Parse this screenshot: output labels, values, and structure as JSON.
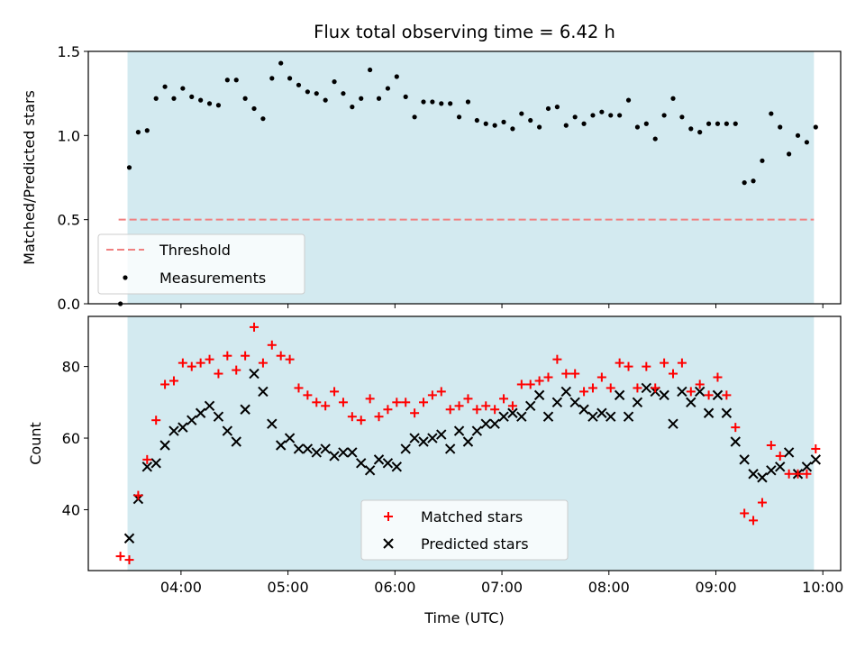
{
  "chart_data": [
    {
      "type": "scatter",
      "title": "Flux total observing time = 6.42 h",
      "xlabel": "",
      "ylabel": "Matched/Predicted stars",
      "ylim": [
        0,
        1.5
      ],
      "yticks": [
        0.0,
        0.5,
        1.0,
        1.5
      ],
      "ytick_labels": [
        "0.0",
        "0.5",
        "1.0",
        "1.5"
      ],
      "xlim": [
        "03:08",
        "10:10"
      ],
      "xticks": [
        "04:00",
        "05:00",
        "06:00",
        "07:00",
        "08:00",
        "09:00",
        "10:00"
      ],
      "grid": false,
      "legend": "lower-left",
      "shaded_span": {
        "x_start": "03:30",
        "x_end": "09:55",
        "color": "#d3eaf0"
      },
      "threshold": {
        "name": "Threshold",
        "value": 0.5,
        "x_start": "03:25",
        "x_end": "09:55",
        "color": "#f08080",
        "style": "dashed"
      },
      "series": [
        {
          "name": "Measurements",
          "color": "#000000",
          "marker": "dot",
          "x": [
            "03:26",
            "03:31",
            "03:36",
            "03:41",
            "03:46",
            "03:51",
            "03:56",
            "04:01",
            "04:06",
            "04:11",
            "04:16",
            "04:21",
            "04:26",
            "04:31",
            "04:36",
            "04:41",
            "04:46",
            "04:51",
            "04:56",
            "05:01",
            "05:06",
            "05:11",
            "05:16",
            "05:21",
            "05:26",
            "05:31",
            "05:36",
            "05:41",
            "05:46",
            "05:51",
            "05:56",
            "06:01",
            "06:06",
            "06:11",
            "06:16",
            "06:21",
            "06:26",
            "06:31",
            "06:36",
            "06:41",
            "06:46",
            "06:51",
            "06:56",
            "07:01",
            "07:06",
            "07:11",
            "07:16",
            "07:21",
            "07:26",
            "07:31",
            "07:36",
            "07:41",
            "07:46",
            "07:51",
            "07:56",
            "08:01",
            "08:06",
            "08:11",
            "08:16",
            "08:21",
            "08:26",
            "08:31",
            "08:36",
            "08:41",
            "08:46",
            "08:51",
            "08:56",
            "09:01",
            "09:06",
            "09:11",
            "09:16",
            "09:21",
            "09:26",
            "09:31",
            "09:36",
            "09:41",
            "09:46",
            "09:51",
            "09:56"
          ],
          "y": [
            0.0,
            0.81,
            1.02,
            1.03,
            1.22,
            1.29,
            1.22,
            1.28,
            1.23,
            1.21,
            1.19,
            1.18,
            1.33,
            1.33,
            1.22,
            1.16,
            1.1,
            1.34,
            1.43,
            1.34,
            1.3,
            1.26,
            1.25,
            1.21,
            1.32,
            1.25,
            1.17,
            1.22,
            1.39,
            1.22,
            1.28,
            1.35,
            1.23,
            1.11,
            1.2,
            1.2,
            1.19,
            1.19,
            1.11,
            1.2,
            1.09,
            1.07,
            1.06,
            1.08,
            1.04,
            1.13,
            1.09,
            1.05,
            1.16,
            1.17,
            1.06,
            1.11,
            1.07,
            1.12,
            1.14,
            1.12,
            1.12,
            1.21,
            1.05,
            1.07,
            0.98,
            1.12,
            1.22,
            1.11,
            1.04,
            1.02,
            1.07,
            1.07,
            1.07,
            1.07,
            0.72,
            0.73,
            0.85,
            1.13,
            1.05,
            0.89,
            1.0,
            0.96,
            1.05
          ]
        }
      ]
    },
    {
      "type": "scatter",
      "title": "",
      "xlabel": "Time (UTC)",
      "ylabel": "Count",
      "ylim": [
        23,
        94
      ],
      "yticks": [
        40,
        60,
        80
      ],
      "ytick_labels": [
        "40",
        "60",
        "80"
      ],
      "xlim": [
        "03:08",
        "10:10"
      ],
      "xticks": [
        "04:00",
        "05:00",
        "06:00",
        "07:00",
        "08:00",
        "09:00",
        "10:00"
      ],
      "xtick_labels": [
        "04:00",
        "05:00",
        "06:00",
        "07:00",
        "08:00",
        "09:00",
        "10:00"
      ],
      "grid": false,
      "legend": "lower-center",
      "shaded_span": {
        "x_start": "03:30",
        "x_end": "09:55",
        "color": "#d3eaf0"
      },
      "series": [
        {
          "name": "Matched stars",
          "color": "#ff0000",
          "marker": "plus",
          "x": [
            "03:26",
            "03:31",
            "03:36",
            "03:41",
            "03:46",
            "03:51",
            "03:56",
            "04:01",
            "04:06",
            "04:11",
            "04:16",
            "04:21",
            "04:26",
            "04:31",
            "04:36",
            "04:41",
            "04:46",
            "04:51",
            "04:56",
            "05:01",
            "05:06",
            "05:11",
            "05:16",
            "05:21",
            "05:26",
            "05:31",
            "05:36",
            "05:41",
            "05:46",
            "05:51",
            "05:56",
            "06:01",
            "06:06",
            "06:11",
            "06:16",
            "06:21",
            "06:26",
            "06:31",
            "06:36",
            "06:41",
            "06:46",
            "06:51",
            "06:56",
            "07:01",
            "07:06",
            "07:11",
            "07:16",
            "07:21",
            "07:26",
            "07:31",
            "07:36",
            "07:41",
            "07:46",
            "07:51",
            "07:56",
            "08:01",
            "08:06",
            "08:11",
            "08:16",
            "08:21",
            "08:26",
            "08:31",
            "08:36",
            "08:41",
            "08:46",
            "08:51",
            "08:56",
            "09:01",
            "09:06",
            "09:11",
            "09:16",
            "09:21",
            "09:26",
            "09:31",
            "09:36",
            "09:41",
            "09:46",
            "09:51",
            "09:56"
          ],
          "y": [
            27,
            26,
            44,
            54,
            65,
            75,
            76,
            81,
            80,
            81,
            82,
            78,
            83,
            79,
            83,
            91,
            81,
            86,
            83,
            82,
            74,
            72,
            70,
            69,
            73,
            70,
            66,
            65,
            71,
            66,
            68,
            70,
            70,
            67,
            70,
            72,
            73,
            68,
            69,
            71,
            68,
            69,
            68,
            71,
            69,
            75,
            75,
            76,
            77,
            82,
            78,
            78,
            73,
            74,
            77,
            74,
            81,
            80,
            74,
            80,
            74,
            81,
            78,
            81,
            73,
            75,
            72,
            77,
            72,
            63,
            39,
            37,
            42,
            58,
            55,
            50,
            50,
            50,
            57
          ]
        },
        {
          "name": "Predicted stars",
          "color": "#000000",
          "marker": "x",
          "x": [
            "03:31",
            "03:36",
            "03:41",
            "03:46",
            "03:51",
            "03:56",
            "04:01",
            "04:06",
            "04:11",
            "04:16",
            "04:21",
            "04:26",
            "04:31",
            "04:36",
            "04:41",
            "04:46",
            "04:51",
            "04:56",
            "05:01",
            "05:06",
            "05:11",
            "05:16",
            "05:21",
            "05:26",
            "05:31",
            "05:36",
            "05:41",
            "05:46",
            "05:51",
            "05:56",
            "06:01",
            "06:06",
            "06:11",
            "06:16",
            "06:21",
            "06:26",
            "06:31",
            "06:36",
            "06:41",
            "06:46",
            "06:51",
            "06:56",
            "07:01",
            "07:06",
            "07:11",
            "07:16",
            "07:21",
            "07:26",
            "07:31",
            "07:36",
            "07:41",
            "07:46",
            "07:51",
            "07:56",
            "08:01",
            "08:06",
            "08:11",
            "08:16",
            "08:21",
            "08:26",
            "08:31",
            "08:36",
            "08:41",
            "08:46",
            "08:51",
            "08:56",
            "09:01",
            "09:06",
            "09:11",
            "09:16",
            "09:21",
            "09:26",
            "09:31",
            "09:36",
            "09:41",
            "09:46",
            "09:51",
            "09:56"
          ],
          "y": [
            32,
            43,
            52,
            53,
            58,
            62,
            63,
            65,
            67,
            69,
            66,
            62,
            59,
            68,
            78,
            73,
            64,
            58,
            60,
            57,
            57,
            56,
            57,
            55,
            56,
            56,
            53,
            51,
            54,
            53,
            52,
            57,
            60,
            59,
            60,
            61,
            57,
            62,
            59,
            62,
            64,
            64,
            66,
            67,
            66,
            69,
            72,
            66,
            70,
            73,
            70,
            68,
            66,
            67,
            66,
            72,
            66,
            70,
            74,
            73,
            72,
            64,
            73,
            70,
            73,
            67,
            72,
            67,
            59,
            54,
            50,
            49,
            51,
            52,
            56,
            50,
            52,
            54
          ]
        }
      ]
    }
  ]
}
